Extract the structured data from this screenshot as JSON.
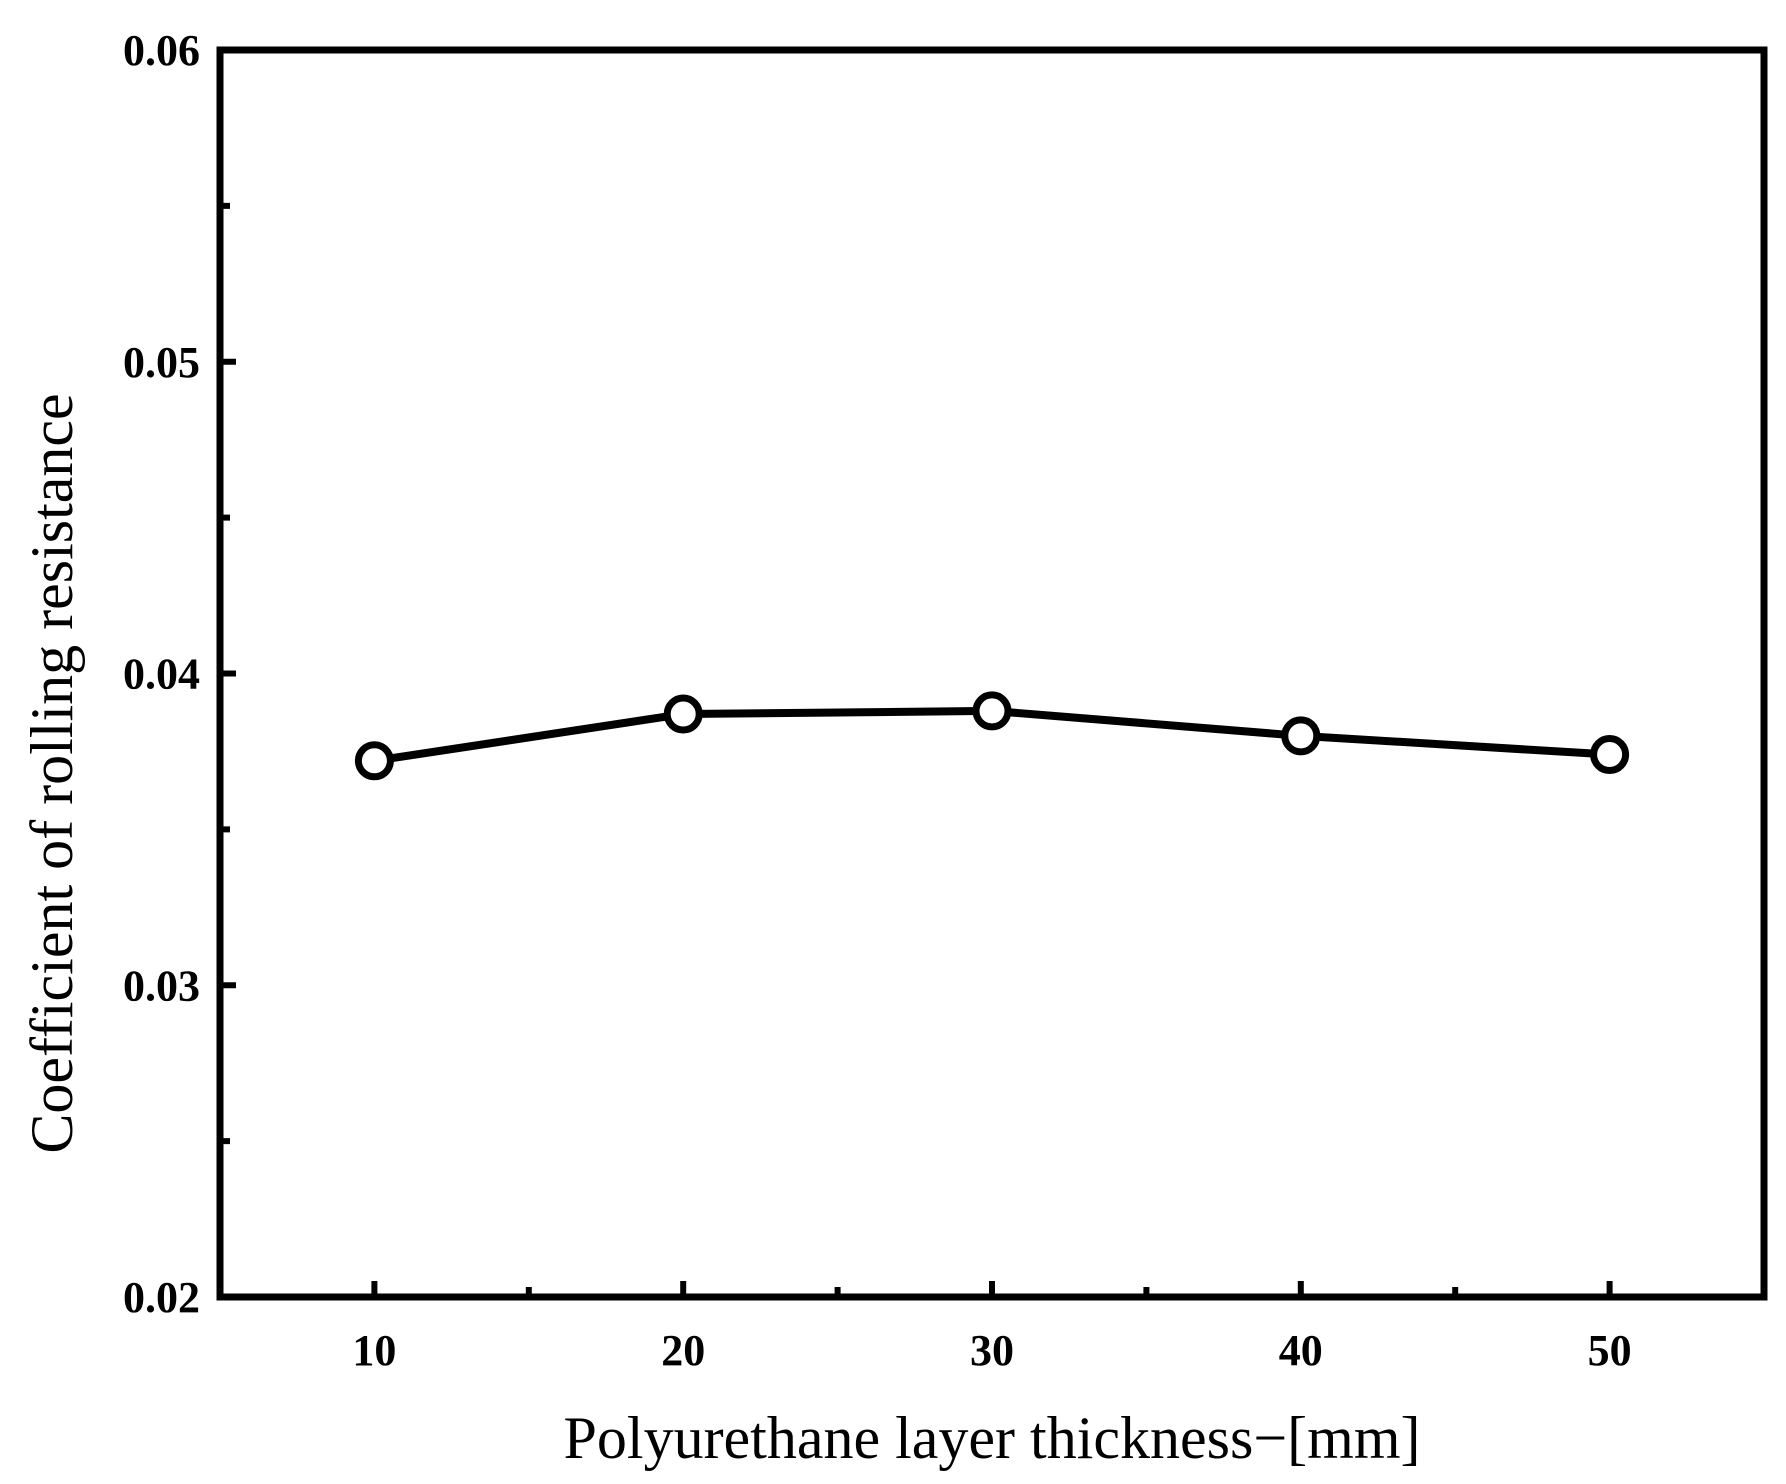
{
  "chart_data": {
    "type": "line",
    "title": "",
    "xlabel": "Polyurethane layer thickness−[mm]",
    "ylabel": "Coefficient of rolling resistance",
    "xlim": [
      5,
      55
    ],
    "ylim": [
      0.02,
      0.06
    ],
    "x_ticks": [
      10,
      20,
      30,
      40,
      50
    ],
    "x_tick_labels": [
      "10",
      "20",
      "30",
      "40",
      "50"
    ],
    "x_minor_ticks": [
      15,
      25,
      35,
      45
    ],
    "y_ticks": [
      0.02,
      0.03,
      0.04,
      0.05,
      0.06
    ],
    "y_tick_labels": [
      "0.02",
      "0.03",
      "0.04",
      "0.05",
      "0.06"
    ],
    "y_minor_ticks": [
      0.025,
      0.035,
      0.045,
      0.055
    ],
    "grid": false,
    "legend": "none",
    "series": [
      {
        "x": [
          10,
          20,
          30,
          40,
          50
        ],
        "values": [
          0.0372,
          0.0387,
          0.0388,
          0.038,
          0.0374
        ],
        "color": "#000000",
        "marker": "open-circle"
      }
    ]
  }
}
